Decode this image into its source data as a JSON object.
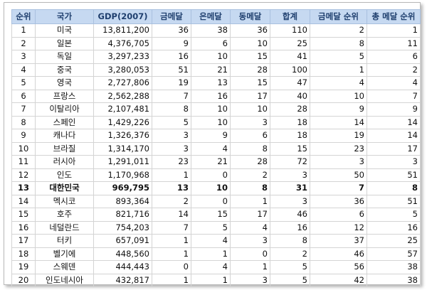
{
  "table": {
    "headers": [
      "순위",
      "국가",
      "GDP(2007)",
      "금메달",
      "은메달",
      "동메달",
      "합계",
      "금메달 순위",
      "총 메달 순위"
    ],
    "highlight_rank": "13",
    "rows": [
      [
        "1",
        "미국",
        "13,811,200",
        "36",
        "38",
        "36",
        "110",
        "2",
        "1"
      ],
      [
        "2",
        "일본",
        "4,376,705",
        "9",
        "6",
        "10",
        "25",
        "8",
        "11"
      ],
      [
        "3",
        "독일",
        "3,297,233",
        "16",
        "10",
        "15",
        "41",
        "5",
        "6"
      ],
      [
        "4",
        "중국",
        "3,280,053",
        "51",
        "21",
        "28",
        "100",
        "1",
        "2"
      ],
      [
        "5",
        "영국",
        "2,727,806",
        "19",
        "13",
        "15",
        "47",
        "4",
        "4"
      ],
      [
        "6",
        "프랑스",
        "2,562,288",
        "7",
        "16",
        "17",
        "40",
        "10",
        "7"
      ],
      [
        "7",
        "이탈리아",
        "2,107,481",
        "8",
        "10",
        "10",
        "28",
        "9",
        "9"
      ],
      [
        "8",
        "스페인",
        "1,429,226",
        "5",
        "10",
        "3",
        "18",
        "14",
        "14"
      ],
      [
        "9",
        "캐나다",
        "1,326,376",
        "3",
        "9",
        "6",
        "18",
        "19",
        "14"
      ],
      [
        "10",
        "브라질",
        "1,314,170",
        "3",
        "4",
        "8",
        "15",
        "23",
        "17"
      ],
      [
        "11",
        "러시아",
        "1,291,011",
        "23",
        "21",
        "28",
        "72",
        "3",
        "3"
      ],
      [
        "12",
        "인도",
        "1,170,968",
        "1",
        "0",
        "2",
        "3",
        "50",
        "51"
      ],
      [
        "13",
        "대한민국",
        "969,795",
        "13",
        "10",
        "8",
        "31",
        "7",
        "8"
      ],
      [
        "14",
        "멕시코",
        "893,364",
        "2",
        "0",
        "1",
        "3",
        "36",
        "51"
      ],
      [
        "15",
        "호주",
        "821,716",
        "14",
        "15",
        "17",
        "46",
        "6",
        "5"
      ],
      [
        "16",
        "네덜란드",
        "754,203",
        "7",
        "5",
        "4",
        "16",
        "12",
        "16"
      ],
      [
        "17",
        "터키",
        "657,091",
        "1",
        "4",
        "3",
        "8",
        "37",
        "25"
      ],
      [
        "18",
        "벨기에",
        "448,560",
        "1",
        "1",
        "0",
        "2",
        "46",
        "57"
      ],
      [
        "19",
        "스웨덴",
        "444,443",
        "0",
        "4",
        "1",
        "5",
        "56",
        "38"
      ],
      [
        "20",
        "인도네시아",
        "432,817",
        "1",
        "1",
        "3",
        "5",
        "42",
        "38"
      ]
    ]
  }
}
